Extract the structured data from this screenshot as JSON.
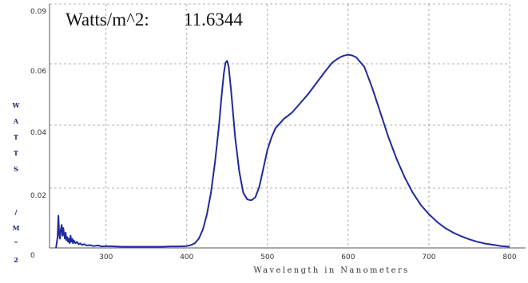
{
  "readout": {
    "label": "Watts/m^2:",
    "value": "11.6344"
  },
  "chart_data": {
    "type": "line",
    "xlabel": "Wavelength in Nanometers",
    "ylabel_chars": [
      "W",
      "A",
      "T",
      "T",
      "S",
      "",
      "/",
      "M",
      "^",
      "2"
    ],
    "xlim": [
      230,
      800
    ],
    "ylim": [
      0,
      0.09
    ],
    "x_ticks": [
      300,
      400,
      500,
      600,
      700,
      800
    ],
    "x_tick_labels": [
      "300",
      "400",
      "500",
      "600",
      "700",
      "800"
    ],
    "y_ticks": [
      0,
      0.02,
      0.04,
      0.06,
      0.09
    ],
    "y_tick_labels": [
      "0",
      "0.02",
      "0.04",
      "0.06",
      "0.09"
    ],
    "grid": true,
    "line_color": "#1f2a9c",
    "series": [
      {
        "x": [
          238,
          240,
          241,
          242,
          243,
          244,
          245,
          246,
          247,
          248,
          249,
          250,
          251,
          252,
          253,
          254,
          255,
          256,
          257,
          258,
          259,
          260,
          262,
          264,
          266,
          268,
          270,
          273,
          276,
          280,
          285,
          290,
          295,
          300,
          310,
          320,
          330,
          340,
          350,
          360,
          370,
          380,
          390,
          400,
          405,
          410,
          415,
          420,
          425,
          430,
          435,
          440,
          443,
          446,
          448,
          450,
          452,
          455,
          458,
          460,
          465,
          470,
          475,
          480,
          485,
          490,
          495,
          500,
          505,
          510,
          520,
          530,
          540,
          550,
          560,
          570,
          580,
          585,
          590,
          595,
          600,
          605,
          610,
          620,
          630,
          640,
          650,
          660,
          670,
          680,
          690,
          700,
          710,
          720,
          730,
          740,
          750,
          760,
          770,
          780,
          790,
          800
        ],
        "values": [
          0.0,
          0.0035,
          0.0105,
          0.0045,
          0.003,
          0.006,
          0.0075,
          0.004,
          0.0065,
          0.0045,
          0.003,
          0.005,
          0.0025,
          0.0035,
          0.002,
          0.003,
          0.0015,
          0.004,
          0.002,
          0.003,
          0.0015,
          0.0025,
          0.0015,
          0.002,
          0.0012,
          0.0015,
          0.001,
          0.0012,
          0.0008,
          0.0009,
          0.0006,
          0.0008,
          0.0005,
          0.0006,
          0.0005,
          0.0004,
          0.0004,
          0.0004,
          0.0004,
          0.0004,
          0.0004,
          0.0005,
          0.0005,
          0.0006,
          0.0009,
          0.0015,
          0.003,
          0.006,
          0.011,
          0.018,
          0.028,
          0.04,
          0.049,
          0.057,
          0.0605,
          0.0615,
          0.059,
          0.051,
          0.042,
          0.036,
          0.025,
          0.018,
          0.0158,
          0.0155,
          0.0165,
          0.02,
          0.026,
          0.032,
          0.036,
          0.039,
          0.042,
          0.044,
          0.047,
          0.05,
          0.0535,
          0.057,
          0.0605,
          0.062,
          0.0633,
          0.0641,
          0.0645,
          0.0642,
          0.0632,
          0.059,
          0.052,
          0.044,
          0.036,
          0.029,
          0.023,
          0.018,
          0.014,
          0.011,
          0.0085,
          0.0065,
          0.005,
          0.0038,
          0.0028,
          0.002,
          0.0014,
          0.001,
          0.0006,
          0.0004
        ]
      }
    ]
  }
}
